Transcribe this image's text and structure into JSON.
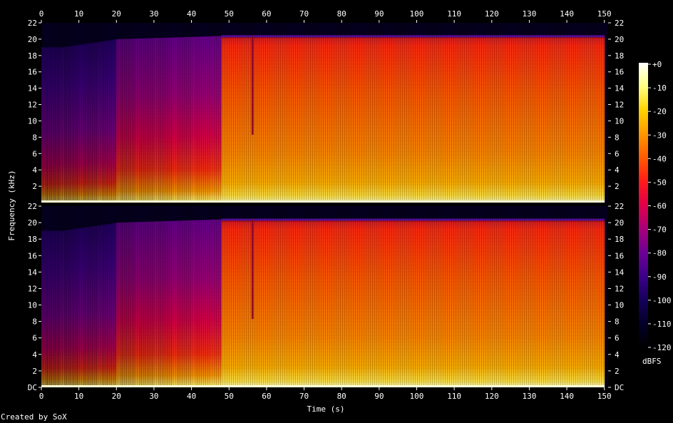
{
  "chart_data": {
    "type": "heatmap",
    "subtype": "spectrogram",
    "xlabel": "Time (s)",
    "ylabel": "Frequency (kHz)",
    "x_ticks": [
      0,
      10,
      20,
      30,
      40,
      50,
      60,
      70,
      80,
      90,
      100,
      110,
      120,
      130,
      140,
      150
    ],
    "xlim": [
      0,
      151
    ],
    "ylim_khz": [
      0,
      22
    ],
    "channels": [
      {
        "y_tick_labels": [
          "22",
          "20",
          "18",
          "16",
          "14",
          "12",
          "10",
          "8",
          "6",
          "4",
          "2"
        ],
        "y_tick_values": [
          22,
          20,
          18,
          16,
          14,
          12,
          10,
          8,
          6,
          4,
          2
        ]
      },
      {
        "y_tick_labels": [
          "22",
          "20",
          "18",
          "16",
          "14",
          "12",
          "10",
          "8",
          "6",
          "4",
          "2",
          "DC"
        ],
        "y_tick_values": [
          22,
          20,
          18,
          16,
          14,
          12,
          10,
          8,
          6,
          4,
          2,
          0
        ]
      }
    ],
    "colorbar": {
      "label": "dBFS",
      "tick_labels": [
        "+0",
        "-10",
        "-20",
        "-30",
        "-40",
        "-50",
        "-60",
        "-70",
        "-80",
        "-90",
        "-100",
        "-110",
        "-120"
      ],
      "range": [
        0,
        -120
      ],
      "colors": [
        "#ffffff",
        "#ffff80",
        "#ffd200",
        "#ff9800",
        "#ff5a00",
        "#ff1a1a",
        "#e0004a",
        "#a8007a",
        "#6c0096",
        "#3c0088",
        "#14005a",
        "#040028",
        "#000000"
      ]
    },
    "content": {
      "high_cut_khz_by_time": [
        [
          0,
          19
        ],
        [
          5,
          19
        ],
        [
          20,
          20
        ],
        [
          48,
          20.4
        ],
        [
          150,
          20.4
        ]
      ],
      "transition_s": 48,
      "notch_s": 56,
      "end_s": 150
    }
  },
  "footer": {
    "credit": "Created by SoX"
  }
}
